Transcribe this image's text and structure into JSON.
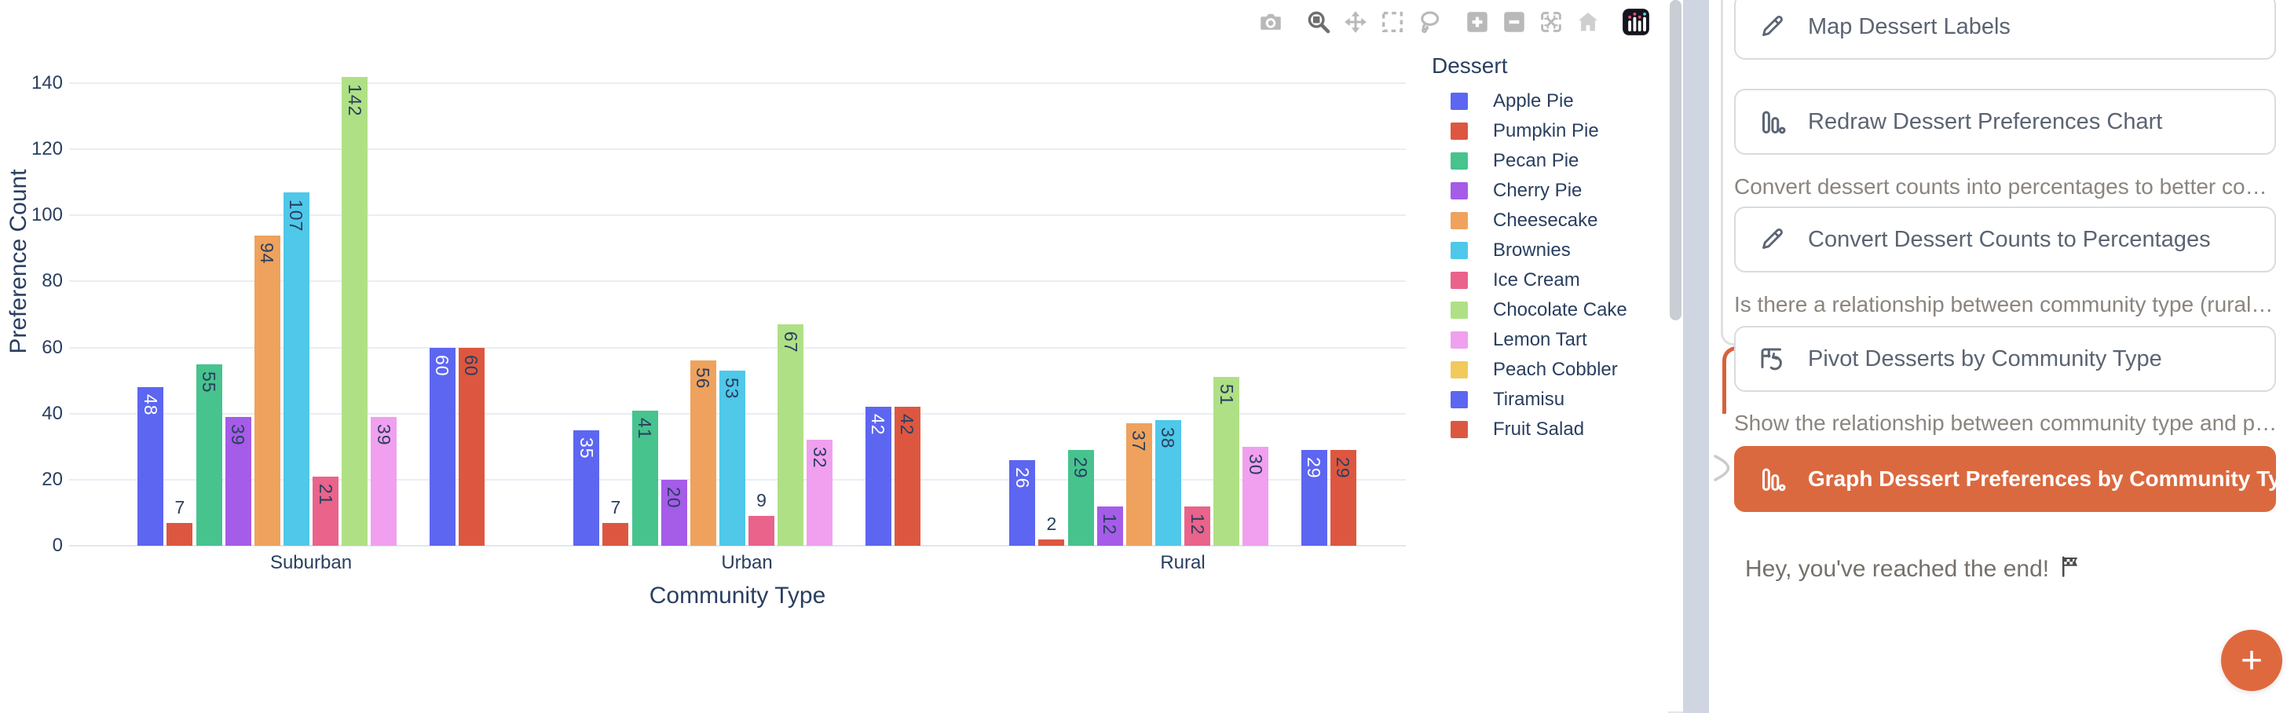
{
  "chart": {
    "yaxis": {
      "title": "Preference Count",
      "ticks": [
        0,
        20,
        40,
        60,
        80,
        100,
        120,
        140
      ]
    },
    "xaxis": {
      "title": "Community Type"
    },
    "legend": {
      "title": "Dessert"
    },
    "modebar": [
      "camera",
      "zoom",
      "pan",
      "box-select",
      "lasso",
      "zoom-in",
      "zoom-out",
      "autoscale",
      "home",
      "plotly-logo"
    ]
  },
  "chart_data": {
    "type": "bar",
    "title": "",
    "categories": [
      "Suburban",
      "Urban",
      "Rural"
    ],
    "series": [
      {
        "name": "Apple Pie",
        "color": "#5D66F0",
        "label_color": "#FFFFFF",
        "values": [
          48,
          35,
          26
        ]
      },
      {
        "name": "Pumpkin Pie",
        "color": "#DD5740",
        "label_color": "#2A3F5F",
        "values": [
          7,
          7,
          2
        ]
      },
      {
        "name": "Pecan Pie",
        "color": "#47C38E",
        "label_color": "#2A3F5F",
        "values": [
          55,
          41,
          29
        ]
      },
      {
        "name": "Cherry Pie",
        "color": "#A55CE8",
        "label_color": "#2A3F5F",
        "values": [
          39,
          20,
          12
        ]
      },
      {
        "name": "Cheesecake",
        "color": "#EFA25D",
        "label_color": "#2A3F5F",
        "values": [
          94,
          56,
          37
        ]
      },
      {
        "name": "Brownies",
        "color": "#4FC8E9",
        "label_color": "#2A3F5F",
        "values": [
          107,
          53,
          38
        ]
      },
      {
        "name": "Ice Cream",
        "color": "#E9638B",
        "label_color": "#2A3F5F",
        "values": [
          21,
          9,
          12
        ]
      },
      {
        "name": "Chocolate Cake",
        "color": "#AFE085",
        "label_color": "#2A3F5F",
        "values": [
          142,
          67,
          51
        ]
      },
      {
        "name": "Lemon Tart",
        "color": "#F0A0EE",
        "label_color": "#2A3F5F",
        "values": [
          39,
          32,
          30
        ]
      },
      {
        "name": "Peach Cobbler",
        "color": "#F2C95C",
        "label_color": "#2A3F5F",
        "values": [
          null,
          null,
          null
        ]
      },
      {
        "name": "Tiramisu",
        "color": "#5D66F0",
        "label_color": "#FFFFFF",
        "values": [
          60,
          42,
          29
        ]
      },
      {
        "name": "Fruit Salad",
        "color": "#DD5740",
        "label_color": "#2A3F5F",
        "values": [
          60,
          42,
          29
        ]
      }
    ],
    "xlabel": "Community Type",
    "ylabel": "Preference Count",
    "ylim": [
      0,
      140
    ],
    "grid": true,
    "legend_position": "right",
    "legend_title": "Dessert",
    "value_labels": true
  },
  "sidebar": {
    "steps": [
      {
        "kind": "button",
        "icon": "pencil",
        "label": "Map Dessert Labels"
      },
      {
        "kind": "button",
        "icon": "bar-chart",
        "label": "Redraw Dessert Preferences Chart"
      },
      {
        "kind": "note",
        "text": "Convert dessert counts into percentages to better compa…"
      },
      {
        "kind": "button",
        "icon": "pencil",
        "label": "Convert Dessert Counts to Percentages"
      },
      {
        "kind": "note",
        "text": "Is there a relationship between community type (rural vs…"
      },
      {
        "kind": "button",
        "icon": "pivot",
        "label": "Pivot Desserts by Community Type"
      },
      {
        "kind": "note",
        "text": "Show the relationship between community type and pre…"
      },
      {
        "kind": "button-primary",
        "icon": "bar-chart",
        "label": "Graph Dessert Preferences by Community Type"
      },
      {
        "kind": "end",
        "icon": "flag",
        "text": "Hey, you've reached the end!"
      }
    ],
    "fab_label": "+"
  },
  "colors": {
    "accent_orange": "#DB6940",
    "connector_orange": "#D6633A",
    "axis_text": "#2A3F5F",
    "grid": "#E9EDF4",
    "note_text": "#8B857E",
    "button_text": "#5B6472",
    "button_border": "#DADBDE",
    "divider": "#CFD6E2",
    "scrollbar_thumb": "#C9CDD4"
  }
}
